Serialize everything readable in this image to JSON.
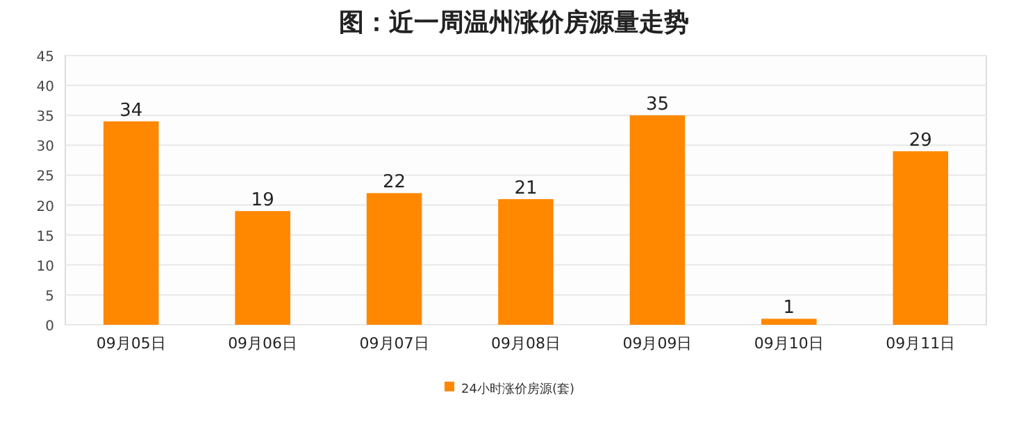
{
  "chart_data": {
    "type": "bar",
    "title": "图：近一周温州涨价房源量走势",
    "categories": [
      "09月05日",
      "09月06日",
      "09月07日",
      "09月08日",
      "09月09日",
      "09月10日",
      "09月11日"
    ],
    "series": [
      {
        "name": "24小时涨价房源(套)",
        "color": "#ff8800",
        "values": [
          34,
          19,
          22,
          21,
          35,
          1,
          29
        ]
      }
    ],
    "ylim": [
      0,
      45
    ],
    "yticks": [
      0,
      5,
      10,
      15,
      20,
      25,
      30,
      35,
      40,
      45
    ],
    "grid": "y",
    "legend": "bottom",
    "data_labels": true
  }
}
